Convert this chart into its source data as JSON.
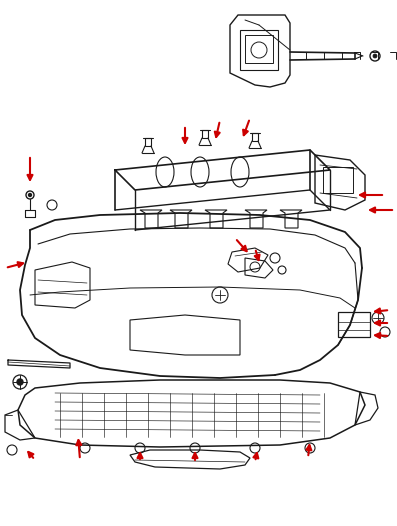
{
  "bg_color": "#ffffff",
  "line_color": "#1a1a1a",
  "arrow_color": "#cc0000",
  "figsize": [
    3.97,
    5.26
  ],
  "dpi": 100,
  "xlim": [
    0,
    397
  ],
  "ylim": [
    0,
    526
  ]
}
